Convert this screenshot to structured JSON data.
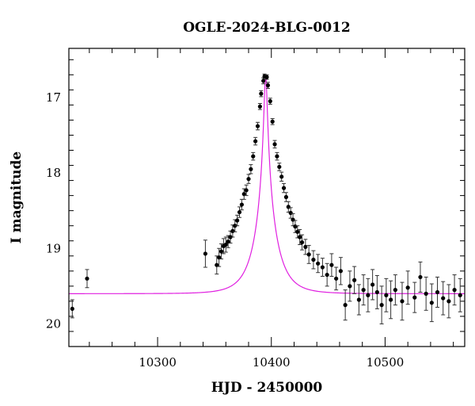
{
  "chart_data": {
    "type": "scatter",
    "title": "OGLE-2024-BLG-0012",
    "xlabel": "HJD - 2450000",
    "ylabel": "I magnitude",
    "xlim": [
      10222,
      10570
    ],
    "ylim": [
      20.3,
      16.35
    ],
    "y_inverted": true,
    "x_ticks_labeled": [
      10300,
      10400,
      10500
    ],
    "y_ticks_labeled": [
      17,
      18,
      19,
      20
    ],
    "model_color": "#e020e0",
    "point_color": "#000000",
    "model": {
      "baseline": 19.6,
      "peak_mag": 16.7,
      "t0": 10395,
      "tE": 18
    },
    "series": [
      {
        "x": [
          10225,
          10238,
          10342,
          10352,
          10354,
          10356,
          10358,
          10360,
          10362,
          10364,
          10366,
          10368,
          10370,
          10372,
          10374,
          10376,
          10378,
          10380,
          10382,
          10384,
          10386,
          10388,
          10390,
          10391,
          10393,
          10394,
          10396,
          10397,
          10399,
          10401,
          10403,
          10405,
          10407,
          10409,
          10411,
          10413,
          10415,
          10417,
          10419,
          10421,
          10423,
          10425,
          10427,
          10430,
          10433,
          10437,
          10441,
          10445,
          10449,
          10453,
          10457,
          10461,
          10465,
          10469,
          10473,
          10477,
          10481,
          10485,
          10489,
          10493,
          10497,
          10501,
          10505,
          10509,
          10515,
          10520,
          10526,
          10531,
          10536,
          10541,
          10546,
          10551,
          10556,
          10561,
          10566
        ],
        "y": [
          19.8,
          19.4,
          19.07,
          19.22,
          19.12,
          19.04,
          18.97,
          18.95,
          18.91,
          18.85,
          18.77,
          18.7,
          18.63,
          18.52,
          18.42,
          18.28,
          18.23,
          18.08,
          17.95,
          17.78,
          17.58,
          17.38,
          17.12,
          16.95,
          16.78,
          16.72,
          16.73,
          16.84,
          17.05,
          17.32,
          17.62,
          17.78,
          17.92,
          18.05,
          18.2,
          18.32,
          18.45,
          18.53,
          18.62,
          18.71,
          18.78,
          18.85,
          18.92,
          18.98,
          19.08,
          19.15,
          19.2,
          19.25,
          19.35,
          19.22,
          19.4,
          19.3,
          19.75,
          19.5,
          19.42,
          19.68,
          19.55,
          19.62,
          19.48,
          19.58,
          19.75,
          19.62,
          19.68,
          19.55,
          19.7,
          19.52,
          19.65,
          19.38,
          19.6,
          19.72,
          19.58,
          19.66,
          19.7,
          19.55,
          19.62
        ],
        "yerr": [
          0.12,
          0.12,
          0.18,
          0.12,
          0.12,
          0.1,
          0.1,
          0.1,
          0.08,
          0.08,
          0.08,
          0.08,
          0.07,
          0.07,
          0.07,
          0.07,
          0.07,
          0.06,
          0.06,
          0.05,
          0.05,
          0.05,
          0.04,
          0.04,
          0.04,
          0.03,
          0.03,
          0.04,
          0.04,
          0.04,
          0.05,
          0.05,
          0.05,
          0.06,
          0.06,
          0.06,
          0.07,
          0.07,
          0.08,
          0.08,
          0.08,
          0.1,
          0.1,
          0.1,
          0.12,
          0.12,
          0.12,
          0.12,
          0.15,
          0.15,
          0.15,
          0.18,
          0.2,
          0.2,
          0.18,
          0.2,
          0.2,
          0.22,
          0.2,
          0.22,
          0.25,
          0.22,
          0.25,
          0.2,
          0.25,
          0.22,
          0.2,
          0.2,
          0.22,
          0.25,
          0.2,
          0.22,
          0.22,
          0.2,
          0.22
        ]
      }
    ]
  }
}
